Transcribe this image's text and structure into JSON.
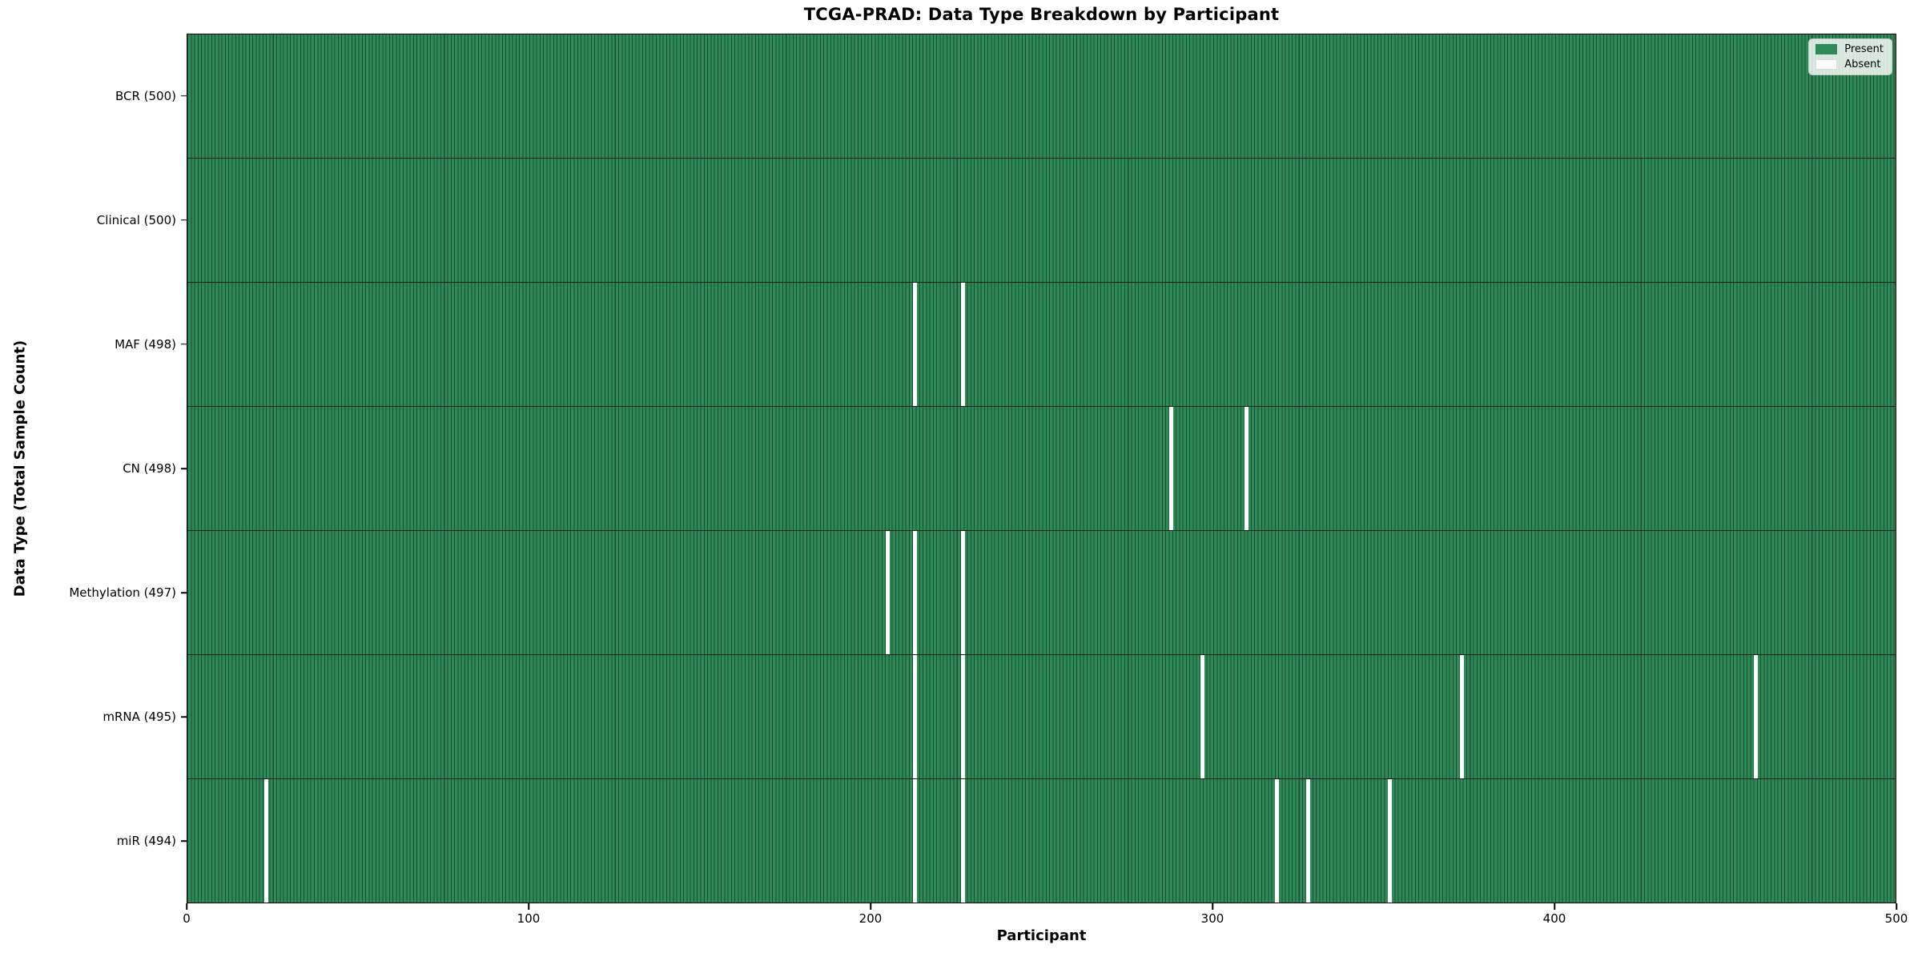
{
  "colors": {
    "present": "#2e8b57",
    "absent": "#ffffff",
    "bar_edge": "rgba(0,0,0,0.45)",
    "row_separator": "rgba(0,0,0,0.75)",
    "axis": "#000000",
    "legend_background": "rgba(255,255,255,0.82)"
  },
  "chart_data": {
    "type": "heatmap",
    "title": "TCGA-PRAD: Data Type Breakdown by Participant",
    "xlabel": "Participant",
    "ylabel": "Data Type (Total Sample Count)",
    "x_range": [
      0,
      500
    ],
    "x_ticks": [
      0,
      100,
      200,
      300,
      400,
      500
    ],
    "n_participants": 500,
    "grid": false,
    "legend_position": "upper right",
    "legend": [
      "Present",
      "Absent"
    ],
    "rows": [
      {
        "label": "BCR (500)",
        "total": 500,
        "absent_participants": []
      },
      {
        "label": "Clinical (500)",
        "total": 500,
        "absent_participants": []
      },
      {
        "label": "MAF (498)",
        "total": 498,
        "absent_participants": [
          213,
          227
        ]
      },
      {
        "label": "CN (498)",
        "total": 498,
        "absent_participants": [
          288,
          310
        ]
      },
      {
        "label": "Methylation (497)",
        "total": 497,
        "absent_participants": [
          205,
          213,
          227
        ]
      },
      {
        "label": "mRNA (495)",
        "total": 495,
        "absent_participants": [
          213,
          227,
          297,
          373,
          459
        ]
      },
      {
        "label": "miR (494)",
        "total": 494,
        "absent_participants": [
          23,
          213,
          227,
          319,
          328,
          352
        ]
      }
    ]
  }
}
